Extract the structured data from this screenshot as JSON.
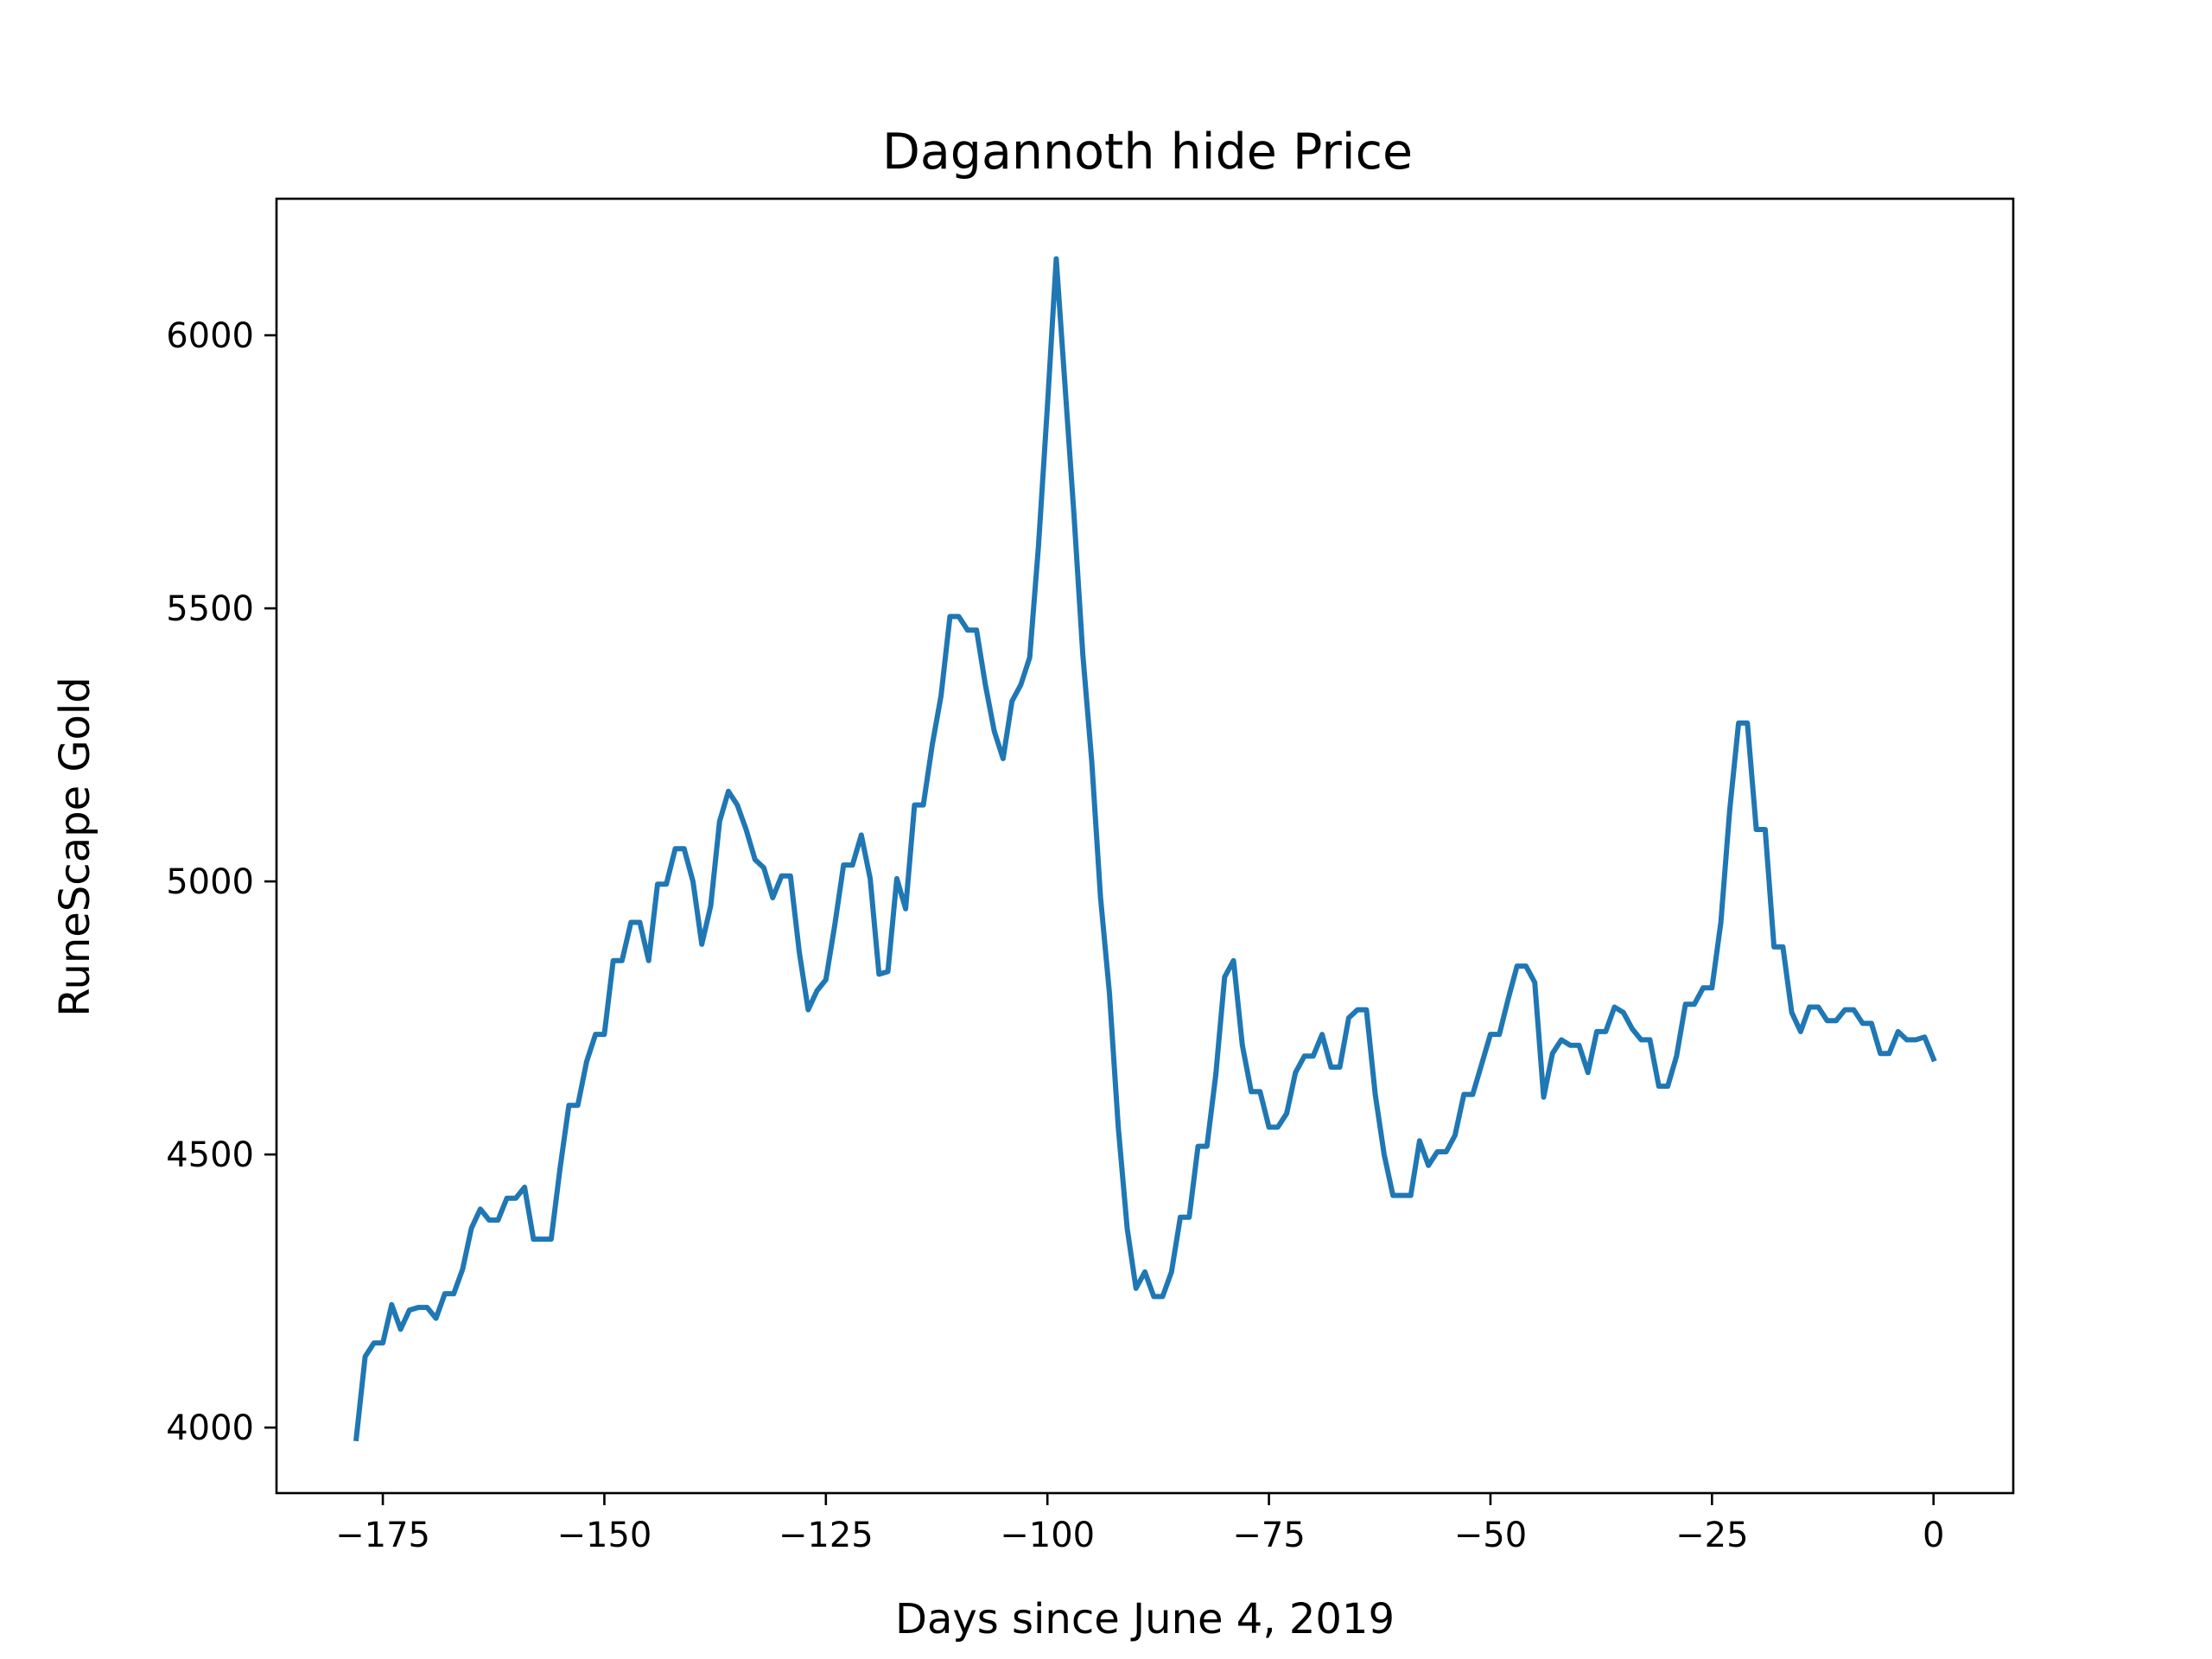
{
  "chart_data": {
    "type": "line",
    "title": "Dagannoth hide Price",
    "xlabel": "Days since June 4, 2019",
    "ylabel": "RuneScape Gold",
    "xlim": [
      -187,
      9
    ],
    "ylim": [
      3880,
      6250
    ],
    "x_ticks": [
      -175,
      -150,
      -125,
      -100,
      -75,
      -50,
      -25,
      0
    ],
    "y_ticks": [
      4000,
      4500,
      5000,
      5500,
      6000
    ],
    "grid": false,
    "legend": "none",
    "series": [
      {
        "color": "#1f77b4",
        "x": [
          -178,
          -177,
          -176,
          -175,
          -174,
          -173,
          -172,
          -171,
          -170,
          -169,
          -168,
          -167,
          -166,
          -165,
          -164,
          -163,
          -162,
          -161,
          -160,
          -159,
          -158,
          -157,
          -156,
          -155,
          -154,
          -153,
          -152,
          -151,
          -150,
          -149,
          -148,
          -147,
          -146,
          -145,
          -144,
          -143,
          -142,
          -141,
          -140,
          -139,
          -138,
          -137,
          -136,
          -135,
          -134,
          -133,
          -132,
          -131,
          -130,
          -129,
          -128,
          -127,
          -126,
          -125,
          -124,
          -123,
          -122,
          -121,
          -120,
          -119,
          -118,
          -117,
          -116,
          -115,
          -114,
          -113,
          -112,
          -111,
          -110,
          -109,
          -108,
          -107,
          -106,
          -105,
          -104,
          -103,
          -102,
          -101,
          -100,
          -99,
          -98,
          -97,
          -96,
          -95,
          -94,
          -93,
          -92,
          -91,
          -90,
          -89,
          -88,
          -87,
          -86,
          -85,
          -84,
          -83,
          -82,
          -81,
          -80,
          -79,
          -78,
          -77,
          -76,
          -75,
          -74,
          -73,
          -72,
          -71,
          -70,
          -69,
          -68,
          -67,
          -66,
          -65,
          -64,
          -63,
          -62,
          -61,
          -60,
          -59,
          -58,
          -57,
          -56,
          -55,
          -54,
          -53,
          -52,
          -51,
          -50,
          -49,
          -48,
          -47,
          -46,
          -45,
          -44,
          -43,
          -42,
          -41,
          -40,
          -39,
          -38,
          -37,
          -36,
          -35,
          -34,
          -33,
          -32,
          -31,
          -30,
          -29,
          -28,
          -27,
          -26,
          -25,
          -24,
          -23,
          -22,
          -21,
          -20,
          -19,
          -18,
          -17,
          -16,
          -15,
          -14,
          -13,
          -12,
          -11,
          -10,
          -9,
          -8,
          -7,
          -6,
          -5,
          -4,
          -3,
          -2,
          -1,
          0
        ],
        "y": [
          3980,
          4130,
          4155,
          4155,
          4225,
          4180,
          4215,
          4220,
          4220,
          4200,
          4245,
          4245,
          4290,
          4365,
          4400,
          4380,
          4380,
          4420,
          4420,
          4440,
          4345,
          4345,
          4345,
          4475,
          4590,
          4590,
          4670,
          4720,
          4720,
          4855,
          4855,
          4925,
          4925,
          4855,
          4995,
          4995,
          5060,
          5060,
          5000,
          4885,
          4955,
          5110,
          5165,
          5140,
          5095,
          5040,
          5025,
          4970,
          5010,
          5010,
          4870,
          4765,
          4800,
          4820,
          4920,
          5030,
          5030,
          5085,
          5005,
          4830,
          4835,
          5005,
          4950,
          5140,
          5140,
          5250,
          5340,
          5485,
          5485,
          5460,
          5460,
          5360,
          5275,
          5225,
          5330,
          5360,
          5410,
          5615,
          5870,
          6140,
          5905,
          5670,
          5415,
          5220,
          4970,
          4795,
          4550,
          4365,
          4255,
          4285,
          4240,
          4240,
          4285,
          4385,
          4385,
          4515,
          4515,
          4645,
          4825,
          4855,
          4700,
          4615,
          4615,
          4550,
          4550,
          4575,
          4650,
          4680,
          4680,
          4720,
          4660,
          4660,
          4750,
          4765,
          4765,
          4610,
          4500,
          4425,
          4425,
          4425,
          4525,
          4480,
          4505,
          4505,
          4535,
          4610,
          4610,
          4665,
          4720,
          4720,
          4785,
          4845,
          4845,
          4815,
          4605,
          4685,
          4710,
          4700,
          4700,
          4650,
          4725,
          4725,
          4770,
          4760,
          4730,
          4710,
          4710,
          4625,
          4625,
          4680,
          4775,
          4775,
          4805,
          4805,
          4925,
          5130,
          5290,
          5290,
          5095,
          5095,
          4880,
          4880,
          4760,
          4725,
          4770,
          4770,
          4745,
          4745,
          4765,
          4765,
          4740,
          4740,
          4685,
          4685,
          4725,
          4710,
          4710,
          4715,
          4675
        ]
      }
    ]
  }
}
